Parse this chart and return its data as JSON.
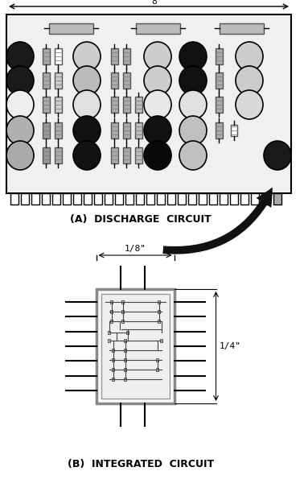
{
  "fig_width": 3.78,
  "fig_height": 6.16,
  "dpi": 100,
  "bg_color": "#ffffff",
  "label_a": "(A)  DISCHARGE  CIRCUIT",
  "label_b": "(B)  INTEGRATED  CIRCUIT",
  "dim_a_label": "8\"",
  "dim_18_label": "1/8\"",
  "dim_14_label": "1/4\""
}
